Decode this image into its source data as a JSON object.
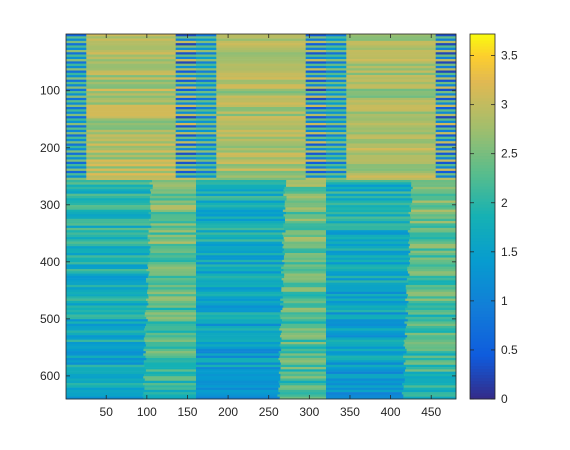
{
  "chart_data": {
    "type": "heatmap",
    "title": "",
    "xlabel": "",
    "ylabel": "",
    "xlim": [
      0.5,
      480.5
    ],
    "ylim": [
      0.5,
      640.5
    ],
    "x_ticks": [
      50,
      100,
      150,
      200,
      250,
      300,
      350,
      400,
      450
    ],
    "y_ticks": [
      100,
      200,
      300,
      400,
      500,
      600
    ],
    "y_direction": "reversed",
    "colorbar": {
      "range": [
        0,
        3.72
      ],
      "ticks": [
        0,
        0.5,
        1,
        1.5,
        2,
        2.5,
        3,
        3.5
      ],
      "colormap": "parula"
    },
    "blocks": [
      {
        "rows": [
          1,
          256
        ],
        "cols": [
          1,
          25
        ],
        "pattern": "alternating",
        "levels": [
          0.7,
          2.2,
          1.2,
          2.6
        ]
      },
      {
        "rows": [
          1,
          256
        ],
        "cols": [
          26,
          135
        ],
        "pattern": "striped",
        "base": 2.8,
        "spread": 0.35,
        "bias_bottom": 0.1
      },
      {
        "rows": [
          1,
          256
        ],
        "cols": [
          136,
          160
        ],
        "pattern": "alternating",
        "levels": [
          0.35,
          2.5,
          1.1,
          3.0
        ]
      },
      {
        "rows": [
          1,
          256
        ],
        "cols": [
          161,
          185
        ],
        "pattern": "alternating",
        "levels": [
          0.9,
          2.3,
          1.4,
          2.6
        ]
      },
      {
        "rows": [
          1,
          256
        ],
        "cols": [
          186,
          295
        ],
        "pattern": "striped",
        "base": 2.75,
        "spread": 0.35,
        "bias_bottom": 0.1
      },
      {
        "rows": [
          1,
          256
        ],
        "cols": [
          296,
          320
        ],
        "pattern": "alternating",
        "levels": [
          0.35,
          2.4,
          1.0,
          3.0
        ]
      },
      {
        "rows": [
          1,
          256
        ],
        "cols": [
          321,
          345
        ],
        "pattern": "alternating",
        "levels": [
          0.9,
          2.3,
          1.4,
          2.6
        ]
      },
      {
        "rows": [
          1,
          256
        ],
        "cols": [
          346,
          455
        ],
        "pattern": "striped",
        "base": 2.75,
        "spread": 0.35,
        "bias_bottom": 0.1
      },
      {
        "rows": [
          1,
          256
        ],
        "cols": [
          456,
          480
        ],
        "pattern": "alternating",
        "levels": [
          0.35,
          2.4,
          1.0,
          3.0
        ]
      },
      {
        "rows": [
          257,
          640
        ],
        "cols": [
          1,
          160
        ],
        "pattern": "split",
        "split_from": 105,
        "split_to": 95,
        "left_top": 2.0,
        "left_bottom": 1.55,
        "right_top": 2.55,
        "right_bottom": 2.1,
        "spread": 0.45
      },
      {
        "rows": [
          257,
          640
        ],
        "cols": [
          161,
          320
        ],
        "pattern": "split",
        "split_from": 270,
        "split_to": 262,
        "left_top": 1.9,
        "left_bottom": 1.35,
        "right_top": 2.55,
        "right_bottom": 2.15,
        "spread": 0.45
      },
      {
        "rows": [
          257,
          640
        ],
        "cols": [
          321,
          480
        ],
        "pattern": "split",
        "split_from": 425,
        "split_to": 415,
        "left_top": 1.85,
        "left_bottom": 1.4,
        "right_top": 2.5,
        "right_bottom": 2.0,
        "spread": 0.45
      }
    ]
  }
}
